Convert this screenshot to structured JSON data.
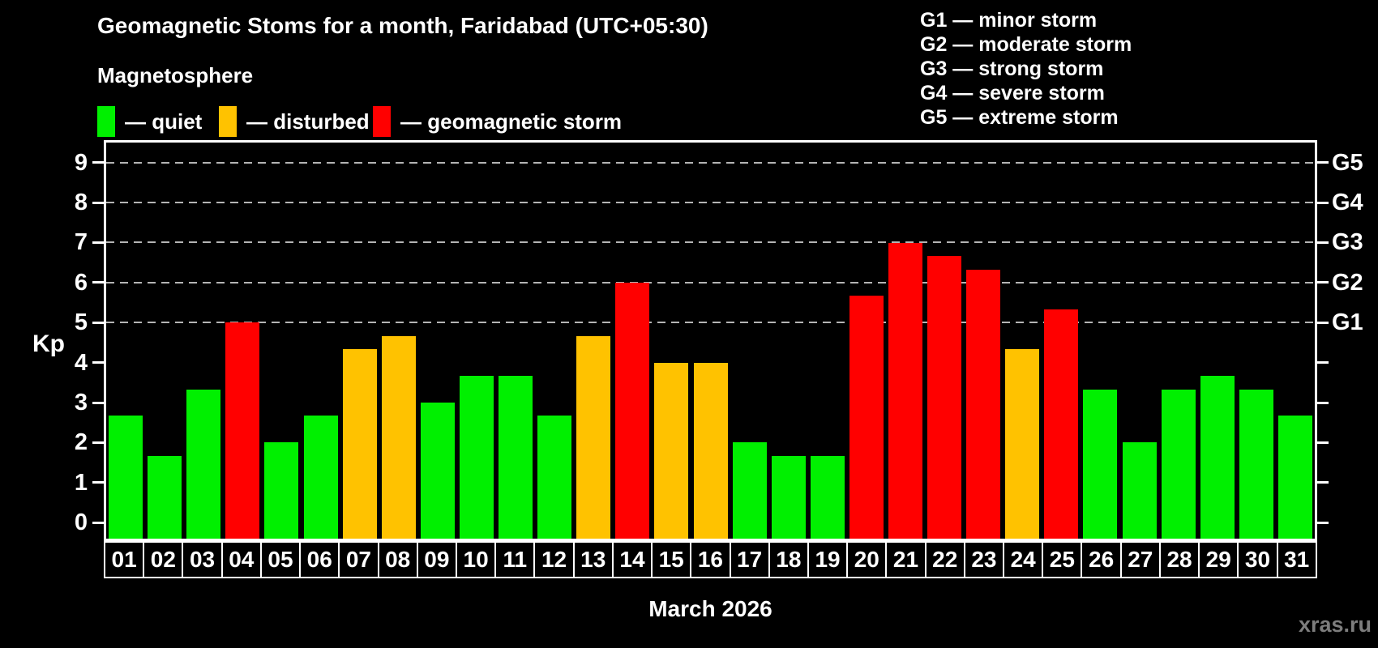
{
  "header": {
    "title": "Geomagnetic Stoms for a month, Faridabad (UTC+05:30)",
    "subtitle": "Magnetosphere"
  },
  "legend": {
    "items": [
      {
        "name": "quiet",
        "label": "— quiet",
        "color": "#00f000"
      },
      {
        "name": "disturbed",
        "label": "— disturbed",
        "color": "#ffc200"
      },
      {
        "name": "geomagnetic-storm",
        "label": "— geomagnetic storm",
        "color": "#ff0000"
      }
    ]
  },
  "storm_scale": {
    "lines": [
      "G1 — minor storm",
      "G2 — moderate storm",
      "G3 — strong storm",
      "G4 — severe storm",
      "G5 — extreme storm"
    ]
  },
  "watermark": "xras.ru",
  "chart_data": {
    "type": "bar",
    "title": "Geomagnetic Stoms for a month, Faridabad (UTC+05:30)",
    "xlabel": "March 2026",
    "ylabel": "Kp",
    "ylim": [
      0,
      9
    ],
    "yticks": [
      0,
      1,
      2,
      3,
      4,
      5,
      6,
      7,
      8,
      9
    ],
    "gridlines_at_kp": [
      5,
      6,
      7,
      8,
      9
    ],
    "grid_style": "dashed gray horizontal",
    "right_axis": {
      "labels": [
        "G1",
        "G2",
        "G3",
        "G4",
        "G5"
      ],
      "at_kp": [
        5,
        6,
        7,
        8,
        9
      ]
    },
    "categories": [
      "01",
      "02",
      "03",
      "04",
      "05",
      "06",
      "07",
      "08",
      "09",
      "10",
      "11",
      "12",
      "13",
      "14",
      "15",
      "16",
      "17",
      "18",
      "19",
      "20",
      "21",
      "22",
      "23",
      "24",
      "25",
      "26",
      "27",
      "28",
      "29",
      "30",
      "31"
    ],
    "values": [
      2.67,
      1.67,
      3.33,
      5.0,
      2.0,
      2.67,
      4.33,
      4.67,
      3.0,
      3.67,
      3.67,
      2.67,
      4.67,
      6.0,
      4.0,
      4.0,
      2.0,
      1.67,
      1.67,
      5.67,
      7.0,
      6.67,
      6.33,
      4.33,
      5.33,
      3.33,
      2.0,
      3.33,
      3.67,
      3.33,
      2.67
    ],
    "levels": [
      "quiet",
      "quiet",
      "quiet",
      "storm",
      "quiet",
      "quiet",
      "disturbed",
      "disturbed",
      "quiet",
      "quiet",
      "quiet",
      "quiet",
      "disturbed",
      "storm",
      "disturbed",
      "disturbed",
      "quiet",
      "quiet",
      "quiet",
      "storm",
      "storm",
      "storm",
      "storm",
      "disturbed",
      "storm",
      "quiet",
      "quiet",
      "quiet",
      "quiet",
      "quiet",
      "quiet"
    ],
    "colors": {
      "quiet": "#00f000",
      "disturbed": "#ffc200",
      "storm": "#ff0000"
    }
  }
}
